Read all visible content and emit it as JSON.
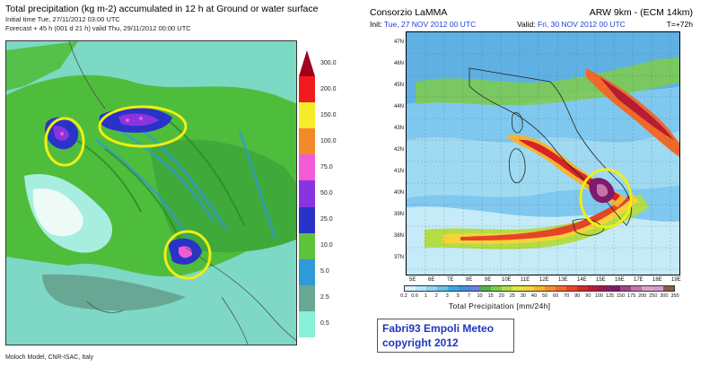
{
  "left": {
    "title": "Total precipitation (kg m-2) accumulated in  12 h at Ground or water surface",
    "initial_time": "Initial time  Tue, 27/11/2012  03:00 UTC",
    "forecast": "Forecast  +  45 h  (001 d 21 h)  valid Thu, 29/11/2012 00:00 UTC",
    "footer": "Moloch Model, CNR-ISAC, Italy",
    "legend": [
      {
        "label": "300.0",
        "color": "#a1001e"
      },
      {
        "label": "200.0",
        "color": "#f01c1c"
      },
      {
        "label": "150.0",
        "color": "#f6ed2a"
      },
      {
        "label": "100.0",
        "color": "#f08a2a"
      },
      {
        "label": "75.0",
        "color": "#f25ad6"
      },
      {
        "label": "50.0",
        "color": "#8a34e0"
      },
      {
        "label": "25.0",
        "color": "#2a33c8"
      },
      {
        "label": "10.0",
        "color": "#5fc23c"
      },
      {
        "label": "5.0",
        "color": "#2f9ad8"
      },
      {
        "label": "2.5",
        "color": "#68a793"
      },
      {
        "label": "0.5",
        "color": "#88f0d8"
      }
    ]
  },
  "right": {
    "org": "Consorzio LaMMA",
    "model": "ARW 9km - (ECM 14km)",
    "init_prefix": "Init:",
    "init_value": "Tue, 27 NOV 2012  00 UTC",
    "valid_prefix": "Valid:",
    "valid_value": "Fri, 30 NOV 2012  00 UTC",
    "lead": "T=+72h",
    "lat_labels": [
      "47N",
      "46N",
      "45N",
      "44N",
      "43N",
      "42N",
      "41N",
      "40N",
      "39N",
      "38N",
      "37N"
    ],
    "lon_labels": [
      "5E",
      "6E",
      "7E",
      "8E",
      "9E",
      "10E",
      "11E",
      "12E",
      "13E",
      "14E",
      "15E",
      "16E",
      "17E",
      "18E",
      "19E"
    ],
    "colorbar_ticks": [
      "0.2",
      "0.6",
      "1",
      "2",
      "3",
      "5",
      "7",
      "10",
      "15",
      "20",
      "25",
      "30",
      "40",
      "50",
      "60",
      "70",
      "80",
      "90",
      "100",
      "125",
      "150",
      "175",
      "200",
      "250",
      "300",
      "350"
    ],
    "colorbar_colors": [
      "#d8f4fb",
      "#b6e7f8",
      "#8ed6f3",
      "#62c2ec",
      "#3aa9e3",
      "#3f8fe0",
      "#6a7fe6",
      "#4fb34b",
      "#7fcc4a",
      "#b3dd45",
      "#e0ea3e",
      "#f6d33a",
      "#f7b333",
      "#f48e2e",
      "#ef6a2a",
      "#e64426",
      "#d72424",
      "#b81c34",
      "#9a1a52",
      "#7e1a6e",
      "#a3438a",
      "#c474a7",
      "#dca4c6",
      "#cf9bd8",
      "#8a5d3b"
    ],
    "colorbar_title": "Total Precipitation [mm/24h]"
  },
  "watermark": {
    "line1": "Fabri93 Empoli Meteo",
    "line2": "copyright 2012"
  },
  "colors": {
    "annotation_circle": "#f2ee12",
    "map_blue": "#1f3fd6"
  }
}
